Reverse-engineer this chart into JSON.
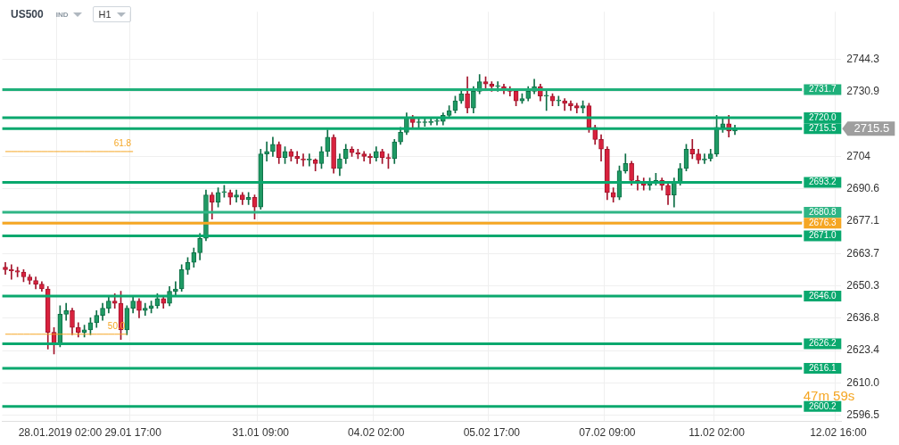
{
  "chart_data": {
    "type": "candlestick",
    "title": "US500",
    "subtitle": "IND",
    "categories": [
      null,
      null,
      null,
      null,
      null,
      null,
      null,
      null,
      null,
      "28.01.2019 02:00",
      null,
      null,
      null,
      null,
      null,
      null,
      null,
      null,
      null,
      null,
      null,
      "29.01 17:00",
      null,
      null,
      null,
      null,
      null,
      null,
      null,
      null,
      null,
      null,
      null,
      null,
      null,
      null,
      null,
      null,
      null,
      null,
      null,
      null,
      "31.01 09:00",
      null,
      null,
      null,
      null,
      null,
      null,
      null,
      null,
      null,
      null,
      null,
      null,
      null,
      null,
      null,
      null,
      null,
      null,
      "04.02 02:00",
      null,
      null,
      null,
      null,
      null,
      null,
      null,
      null,
      null,
      null,
      null,
      null,
      null,
      null,
      null,
      null,
      null,
      null,
      "05.02 17:00",
      null,
      null,
      null,
      null,
      null,
      null,
      null,
      null,
      null,
      null,
      null,
      null,
      null,
      null,
      null,
      null,
      null,
      null,
      "07.02 09:00",
      null,
      null,
      null,
      null,
      null,
      null,
      null,
      null,
      null,
      null,
      null,
      null,
      null,
      null,
      null,
      null,
      null,
      "11.02 02:00",
      null,
      null,
      null,
      null,
      null,
      null,
      null,
      null,
      null,
      null,
      null,
      null,
      null,
      null,
      null,
      null,
      null,
      null,
      null,
      "12.02 16:00"
    ],
    "ohlc": [
      [
        2658,
        2660,
        2655,
        2657
      ],
      [
        2657,
        2659,
        2653,
        2656.5
      ],
      [
        2656.5,
        2658,
        2654,
        2656
      ],
      [
        2656,
        2657,
        2652,
        2654
      ],
      [
        2654,
        2655,
        2651,
        2652.5
      ],
      [
        2652.5,
        2654,
        2649,
        2651
      ],
      [
        2651,
        2652,
        2648,
        2649
      ],
      [
        2649,
        2650,
        2624,
        2631
      ],
      [
        2631,
        2633,
        2622,
        2626
      ],
      [
        2626,
        2642,
        2625,
        2638.5
      ],
      [
        2638.5,
        2643,
        2636,
        2640
      ],
      [
        2640,
        2641,
        2630,
        2633
      ],
      [
        2633,
        2635,
        2629,
        2631
      ],
      [
        2631,
        2634,
        2629,
        2632
      ],
      [
        2632,
        2637,
        2630,
        2635
      ],
      [
        2635,
        2640,
        2633,
        2638
      ],
      [
        2638,
        2643,
        2636,
        2641
      ],
      [
        2641,
        2646,
        2639,
        2644
      ],
      [
        2644,
        2647,
        2641,
        2643
      ],
      [
        2643,
        2648,
        2628,
        2632
      ],
      [
        2632,
        2642,
        2630,
        2641
      ],
      [
        2641,
        2646,
        2639,
        2644
      ],
      [
        2644,
        2645,
        2637,
        2640
      ],
      [
        2640,
        2643,
        2638,
        2641
      ],
      [
        2641,
        2644,
        2639,
        2642
      ],
      [
        2642,
        2647,
        2641,
        2645
      ],
      [
        2645,
        2646,
        2641,
        2643
      ],
      [
        2643,
        2650,
        2642,
        2648
      ],
      [
        2648,
        2652,
        2646,
        2649
      ],
      [
        2649,
        2659,
        2648,
        2657
      ],
      [
        2657,
        2662,
        2655,
        2660
      ],
      [
        2660,
        2666,
        2658,
        2664
      ],
      [
        2664,
        2672,
        2661,
        2670
      ],
      [
        2670,
        2690,
        2669,
        2688
      ],
      [
        2688,
        2689,
        2678,
        2685
      ],
      [
        2685,
        2691,
        2683,
        2689
      ],
      [
        2689,
        2692,
        2687,
        2689
      ],
      [
        2689,
        2690,
        2684,
        2687
      ],
      [
        2687,
        2690,
        2685,
        2688
      ],
      [
        2688,
        2689,
        2684,
        2686
      ],
      [
        2686,
        2689,
        2684,
        2687
      ],
      [
        2687,
        2688,
        2678,
        2683
      ],
      [
        2683,
        2707,
        2682,
        2705
      ],
      [
        2705,
        2710,
        2702,
        2706
      ],
      [
        2706,
        2712,
        2704,
        2709
      ],
      [
        2709,
        2710,
        2701,
        2703.5
      ],
      [
        2703.5,
        2708,
        2701,
        2706
      ],
      [
        2706,
        2707,
        2702,
        2704
      ],
      [
        2704,
        2706,
        2701,
        2703
      ],
      [
        2703,
        2705,
        2700,
        2702.5
      ],
      [
        2702.5,
        2705,
        2700,
        2702.5
      ],
      [
        2702.5,
        2703,
        2698,
        2701
      ],
      [
        2701,
        2708,
        2699,
        2706
      ],
      [
        2706,
        2715,
        2704,
        2712
      ],
      [
        2712,
        2713,
        2697,
        2699
      ],
      [
        2699,
        2705,
        2696,
        2703
      ],
      [
        2703,
        2709,
        2701,
        2707
      ],
      [
        2707,
        2708,
        2704,
        2705.5
      ],
      [
        2705.5,
        2707,
        2703,
        2705
      ],
      [
        2705,
        2706,
        2702,
        2704
      ],
      [
        2704,
        2705,
        2701,
        2703.5
      ],
      [
        2703.5,
        2708,
        2702,
        2706
      ],
      [
        2706,
        2707,
        2701,
        2703.5
      ],
      [
        2703.5,
        2705,
        2699,
        2703
      ],
      [
        2703,
        2711,
        2701,
        2710
      ],
      [
        2710,
        2716,
        2709,
        2714
      ],
      [
        2714,
        2722,
        2713,
        2720
      ],
      [
        2720,
        2721,
        2716,
        2718
      ],
      [
        2718,
        2720,
        2716,
        2718
      ],
      [
        2718,
        2720,
        2716.5,
        2718
      ],
      [
        2718,
        2720,
        2717,
        2718.5
      ],
      [
        2718.5,
        2720,
        2717,
        2718.5
      ],
      [
        2718.5,
        2722,
        2717,
        2721
      ],
      [
        2721,
        2725,
        2720,
        2723
      ],
      [
        2723,
        2729,
        2722,
        2727
      ],
      [
        2727,
        2732,
        2726,
        2730
      ],
      [
        2730,
        2737,
        2722,
        2724
      ],
      [
        2724,
        2733,
        2722,
        2731
      ],
      [
        2731,
        2738,
        2730,
        2735
      ],
      [
        2735,
        2737,
        2732,
        2734
      ],
      [
        2734,
        2735,
        2731,
        2733
      ],
      [
        2733,
        2735,
        2731,
        2733
      ],
      [
        2733,
        2734,
        2730,
        2732
      ],
      [
        2732,
        2733,
        2729,
        2731
      ],
      [
        2731,
        2732,
        2725,
        2727
      ],
      [
        2727,
        2730,
        2726,
        2728
      ],
      [
        2728,
        2733,
        2727,
        2731
      ],
      [
        2731,
        2736,
        2730,
        2733
      ],
      [
        2733,
        2734,
        2727,
        2729
      ],
      [
        2729,
        2731,
        2723,
        2729
      ],
      [
        2729,
        2730,
        2725,
        2727
      ],
      [
        2727,
        2729,
        2725,
        2727
      ],
      [
        2727,
        2728,
        2723,
        2726
      ],
      [
        2726,
        2727,
        2723,
        2725
      ],
      [
        2725,
        2726,
        2722,
        2724
      ],
      [
        2724,
        2727,
        2722,
        2725
      ],
      [
        2725,
        2726,
        2714,
        2716
      ],
      [
        2716,
        2717,
        2709,
        2711
      ],
      [
        2711,
        2713,
        2702,
        2707
      ],
      [
        2707,
        2708,
        2686,
        2689
      ],
      [
        2689,
        2691,
        2685,
        2687
      ],
      [
        2687,
        2700,
        2686,
        2698
      ],
      [
        2698,
        2705,
        2697,
        2701
      ],
      [
        2701,
        2702,
        2692,
        2694
      ],
      [
        2694,
        2696,
        2690,
        2693
      ],
      [
        2693,
        2695,
        2690,
        2692
      ],
      [
        2692,
        2695,
        2690,
        2693
      ],
      [
        2693,
        2697,
        2692,
        2694
      ],
      [
        2694,
        2695,
        2690,
        2692
      ],
      [
        2692,
        2693,
        2684,
        2688
      ],
      [
        2688,
        2695,
        2683,
        2693
      ],
      [
        2693,
        2701,
        2692,
        2699
      ],
      [
        2699,
        2709,
        2698,
        2707
      ],
      [
        2707,
        2711,
        2703,
        2705
      ],
      [
        2705,
        2707,
        2701,
        2702.5
      ],
      [
        2702.5,
        2705,
        2701,
        2703
      ],
      [
        2703,
        2707,
        2702,
        2705
      ],
      [
        2705,
        2721,
        2704,
        2716
      ],
      [
        2716,
        2720,
        2714,
        2717.5
      ],
      [
        2717.5,
        2721,
        2712,
        2714.5
      ],
      [
        2714.5,
        2717,
        2713,
        2715.5
      ],
      null,
      null,
      null,
      null,
      null,
      null,
      null,
      null,
      null,
      null,
      null,
      null,
      null,
      null,
      null,
      null,
      null
    ],
    "series": [
      {
        "name": "61.8",
        "type": "line",
        "color": "#f5a623",
        "values": [
          2706,
          2706,
          2706,
          2706,
          2706,
          2706,
          2706,
          2706,
          2706,
          2706,
          2706,
          2706,
          2706,
          2706,
          2706,
          2706,
          2706,
          2706,
          2706,
          2706,
          2706,
          2706,
          null,
          null,
          null,
          null,
          null,
          null,
          null,
          null,
          null,
          null,
          null,
          null,
          null,
          null,
          null,
          null,
          null,
          null,
          null,
          null,
          null,
          null,
          null,
          null,
          null,
          null,
          null,
          null,
          null,
          null,
          null,
          null,
          null,
          null,
          null,
          null,
          null,
          null,
          null,
          null,
          null,
          null,
          null,
          null,
          null,
          null,
          null,
          null,
          null,
          null,
          null,
          null,
          null,
          null,
          null,
          null,
          null,
          null,
          null,
          null,
          null,
          null,
          null,
          null,
          null,
          null,
          null,
          null,
          null,
          null,
          null,
          null,
          null,
          null,
          null,
          null,
          null,
          null,
          null,
          null,
          null,
          null,
          null,
          null,
          null,
          null,
          null,
          null,
          null,
          null,
          null,
          null,
          null,
          null,
          null,
          null,
          null,
          null,
          null,
          null,
          null,
          null,
          null,
          null,
          null,
          null,
          null,
          null,
          null,
          null,
          null,
          null,
          null,
          null,
          null,
          null
        ]
      },
      {
        "name": "50.0",
        "type": "line",
        "color": "#f5a623",
        "values": [
          2630.2,
          2630.2,
          2630.2,
          2630.2,
          2630.2,
          2630.2,
          2630.2,
          2630.2,
          2630.2,
          2630.2,
          2630.2,
          2630.2,
          2630.2,
          2630.2,
          2630.2,
          2630.2,
          2630.2,
          2630.2,
          2630.2,
          2630.2,
          2630.2,
          null,
          null,
          null,
          null,
          null,
          null,
          null,
          null,
          null,
          null,
          null,
          null,
          null,
          null,
          null,
          null,
          null,
          null,
          null,
          null,
          null,
          null,
          null,
          null,
          null,
          null,
          null,
          null,
          null,
          null,
          null,
          null,
          null,
          null,
          null,
          null,
          null,
          null,
          null,
          null,
          null,
          null,
          null,
          null,
          null,
          null,
          null,
          null,
          null,
          null,
          null,
          null,
          null,
          null,
          null,
          null,
          null,
          null,
          null,
          null,
          null,
          null,
          null,
          null,
          null,
          null,
          null,
          null,
          null,
          null,
          null,
          null,
          null,
          null,
          null,
          null,
          null,
          null,
          null,
          null,
          null,
          null,
          null,
          null,
          null,
          null,
          null,
          null,
          null,
          null,
          null,
          null,
          null,
          null,
          null,
          null,
          null,
          null,
          null,
          null,
          null,
          null,
          null,
          null,
          null,
          null,
          null,
          null,
          null,
          null,
          null,
          null,
          null,
          null,
          null,
          null,
          null
        ]
      }
    ],
    "ylim": [
      2594,
      2764
    ],
    "yticks": [
      2744.3,
      2730.9,
      2704.0,
      2690.6,
      2677.1,
      2663.7,
      2650.3,
      2636.8,
      2623.4,
      {
        "value": 2610,
        "label": "2610.0"
      },
      2596.5
    ],
    "ref_lines": [
      {
        "axis": "y",
        "value": 2731.7,
        "label": "2731.7",
        "color": "#1fb07a"
      },
      {
        "axis": "y",
        "value": 2720.0,
        "label": "2720.0",
        "color": "#0aa86e"
      },
      {
        "axis": "y",
        "value": 2715.5,
        "label": "2715.5",
        "color": "#0aa86e"
      },
      {
        "axis": "y",
        "value": 2693.2,
        "label": "2693.2",
        "color": "#0aa86e"
      },
      {
        "axis": "y",
        "value": 2680.8,
        "label": "2680.8",
        "color": "#2fb585"
      },
      {
        "axis": "y",
        "value": 2676.3,
        "label": "2676.3",
        "color": "#f5a623"
      },
      {
        "axis": "y",
        "value": 2671.0,
        "label": "2671.0",
        "color": "#0aa86e"
      },
      {
        "axis": "y",
        "value": 2646.0,
        "label": "2646.0",
        "color": "#0aa86e"
      },
      {
        "axis": "y",
        "value": 2626.2,
        "label": "2626.2",
        "color": "#0aa86e"
      },
      {
        "axis": "y",
        "value": 2616.1,
        "label": "2616.1",
        "color": "#0aa86e"
      },
      {
        "axis": "y",
        "value": 2600.2,
        "label": "2600.2",
        "color": "#0aa86e"
      }
    ],
    "annotations": [
      "H1",
      "47m 59s",
      "2715.5"
    ],
    "grid": true,
    "legend": false
  }
}
